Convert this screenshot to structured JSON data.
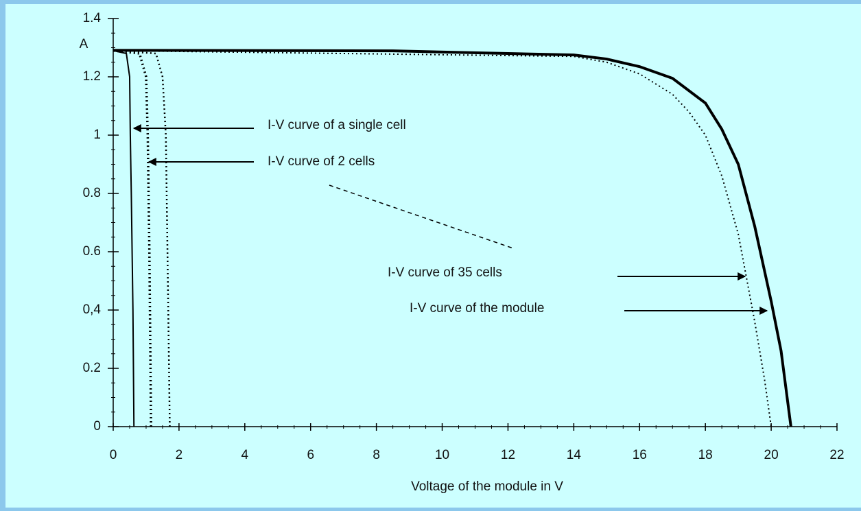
{
  "chart_data": {
    "type": "line",
    "xlabel": "Voltage of the module  in V",
    "ylabel": "A",
    "xlim": [
      0,
      22
    ],
    "xticks": [
      0,
      2,
      4,
      6,
      8,
      10,
      12,
      14,
      16,
      18,
      20,
      22
    ],
    "ylim": [
      0,
      1.4
    ],
    "yticks": [
      0,
      0.2,
      {
        "value": 0.4,
        "label": "0,4"
      },
      0.6,
      0.8,
      1,
      1.2,
      1.4
    ],
    "annotations": [
      "I-V curve of a single cell",
      "I-V curve of 2 cells",
      "I-V curve of 35 cells",
      "I-V curve of the module"
    ],
    "series": [
      {
        "color": "#000000",
        "linestyle": "solid",
        "linewidth": 2,
        "x": [
          0,
          0.4,
          0.5,
          0.52,
          0.55,
          0.6,
          0.63
        ],
        "values": [
          1.29,
          1.28,
          1.2,
          1.0,
          0.8,
          0.4,
          0
        ]
      },
      {
        "color": "#000000",
        "linestyle": "dotted",
        "linewidth": 3.5,
        "x": [
          0,
          0.8,
          1.0,
          1.05,
          1.1,
          1.15
        ],
        "values": [
          1.29,
          1.28,
          1.2,
          1.0,
          0.6,
          0
        ]
      },
      {
        "color": "#000000",
        "linestyle": "dotted",
        "linewidth": 2.5,
        "x": [
          0,
          1.3,
          1.5,
          1.6,
          1.65,
          1.72
        ],
        "values": [
          1.29,
          1.28,
          1.2,
          1.0,
          0.6,
          0
        ]
      },
      {
        "color": "#000000",
        "linestyle": "dotted",
        "linewidth": 2,
        "x": [
          0,
          14,
          15,
          16,
          17,
          17.5,
          18,
          18.5,
          19,
          19.5,
          19.8,
          20
        ],
        "values": [
          1.29,
          1.27,
          1.25,
          1.21,
          1.14,
          1.08,
          1.0,
          0.86,
          0.66,
          0.36,
          0.16,
          0
        ]
      },
      {
        "color": "#000000",
        "linestyle": "solid",
        "linewidth": 4,
        "x": [
          0,
          8.5,
          14,
          15,
          16,
          17,
          18,
          18.5,
          19,
          19.5,
          20,
          20.3,
          20.6
        ],
        "values": [
          1.291,
          1.289,
          1.275,
          1.261,
          1.235,
          1.195,
          1.11,
          1.02,
          0.9,
          0.687,
          0.43,
          0.26,
          0
        ]
      }
    ]
  }
}
